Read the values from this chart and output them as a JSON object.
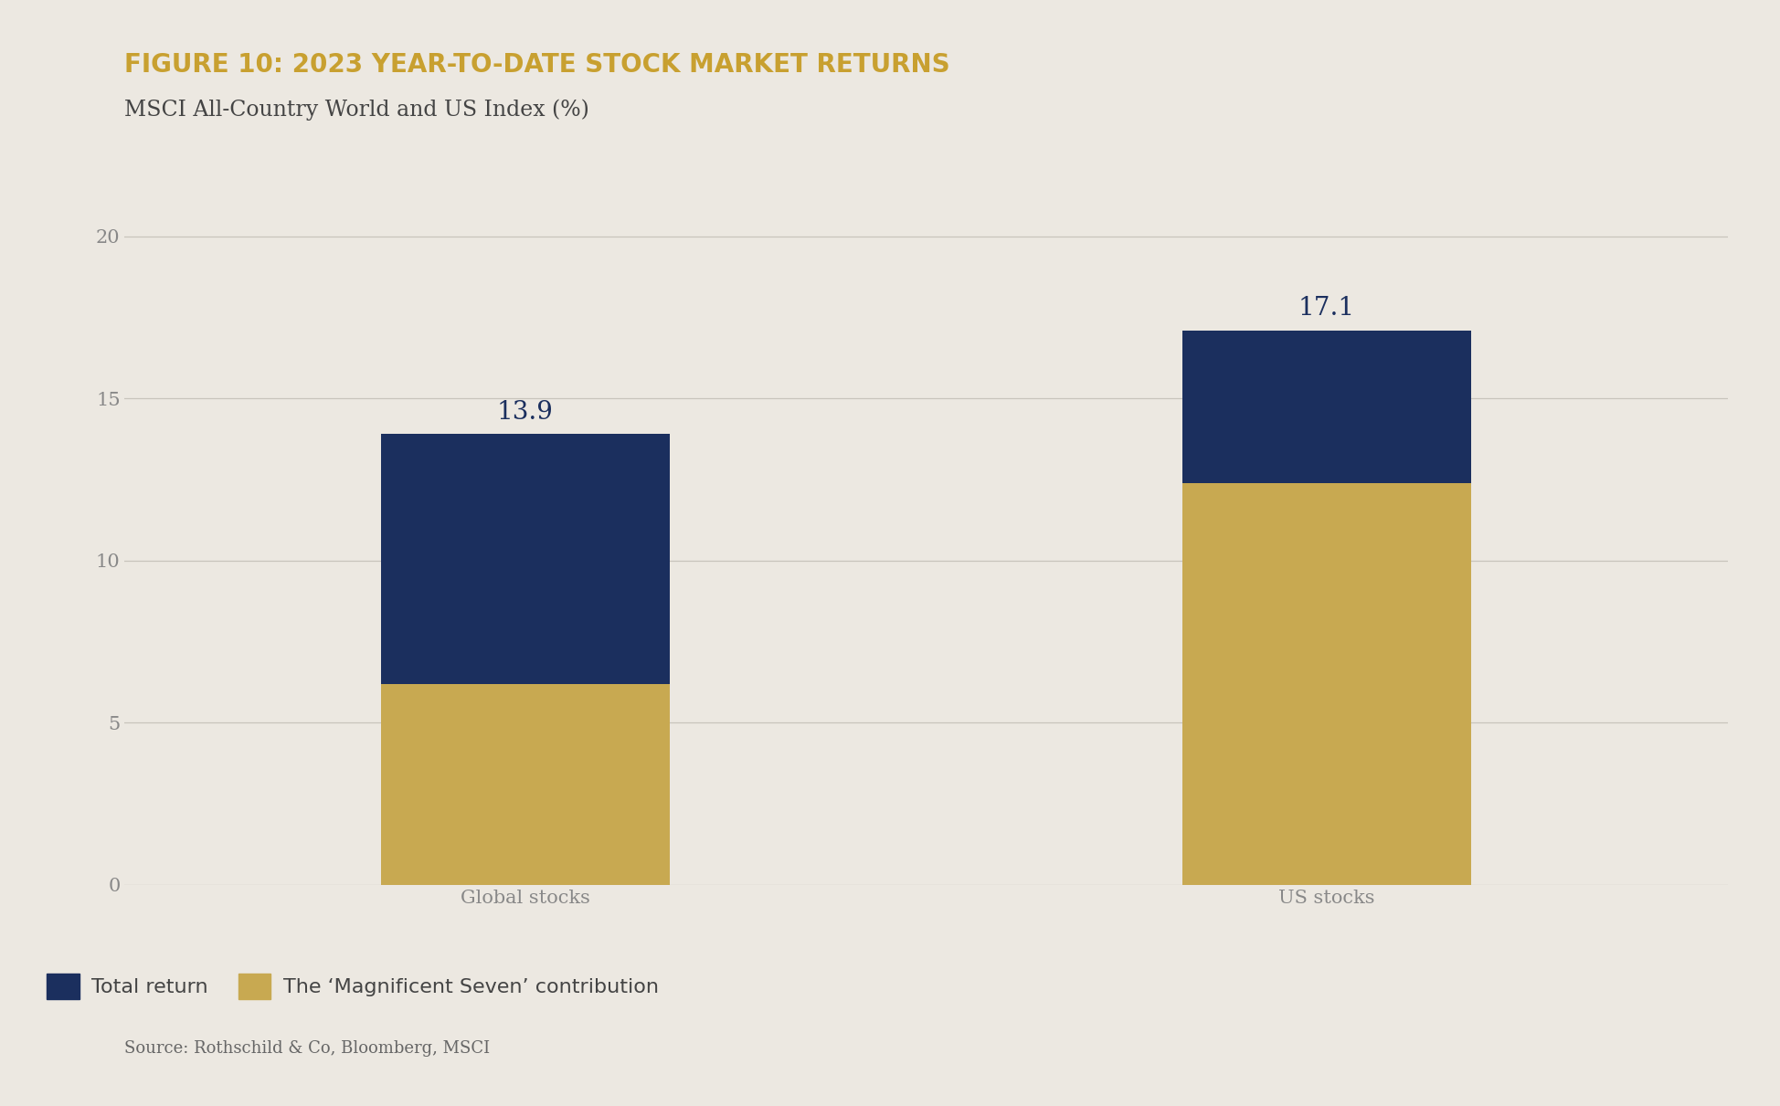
{
  "title": "FIGURE 10: 2023 YEAR-TO-DATE STOCK MARKET RETURNS",
  "subtitle": "MSCI All-Country World and US Index (%)",
  "source": "Source: Rothschild & Co, Bloomberg, MSCI",
  "categories": [
    "Global stocks",
    "US stocks"
  ],
  "magnificent_seven": [
    6.2,
    12.4
  ],
  "total_return": [
    13.9,
    17.1
  ],
  "color_dark_navy": "#1b2f5e",
  "color_gold": "#c8a951",
  "color_background": "#ece8e1",
  "color_title": "#c8a030",
  "color_subtitle": "#444444",
  "color_annotation": "#1b2f5e",
  "color_axis_text": "#888888",
  "color_source": "#666666",
  "color_gridline": "#c8c4bc",
  "ylim": [
    0,
    22
  ],
  "yticks": [
    0,
    5,
    10,
    15,
    20
  ],
  "bar_width": 0.18,
  "bar_positions": [
    0.25,
    0.75
  ],
  "xlim": [
    0,
    1
  ],
  "annotation_fontsize": 20,
  "title_fontsize": 20,
  "subtitle_fontsize": 17,
  "tick_fontsize": 15,
  "legend_fontsize": 16,
  "source_fontsize": 13
}
